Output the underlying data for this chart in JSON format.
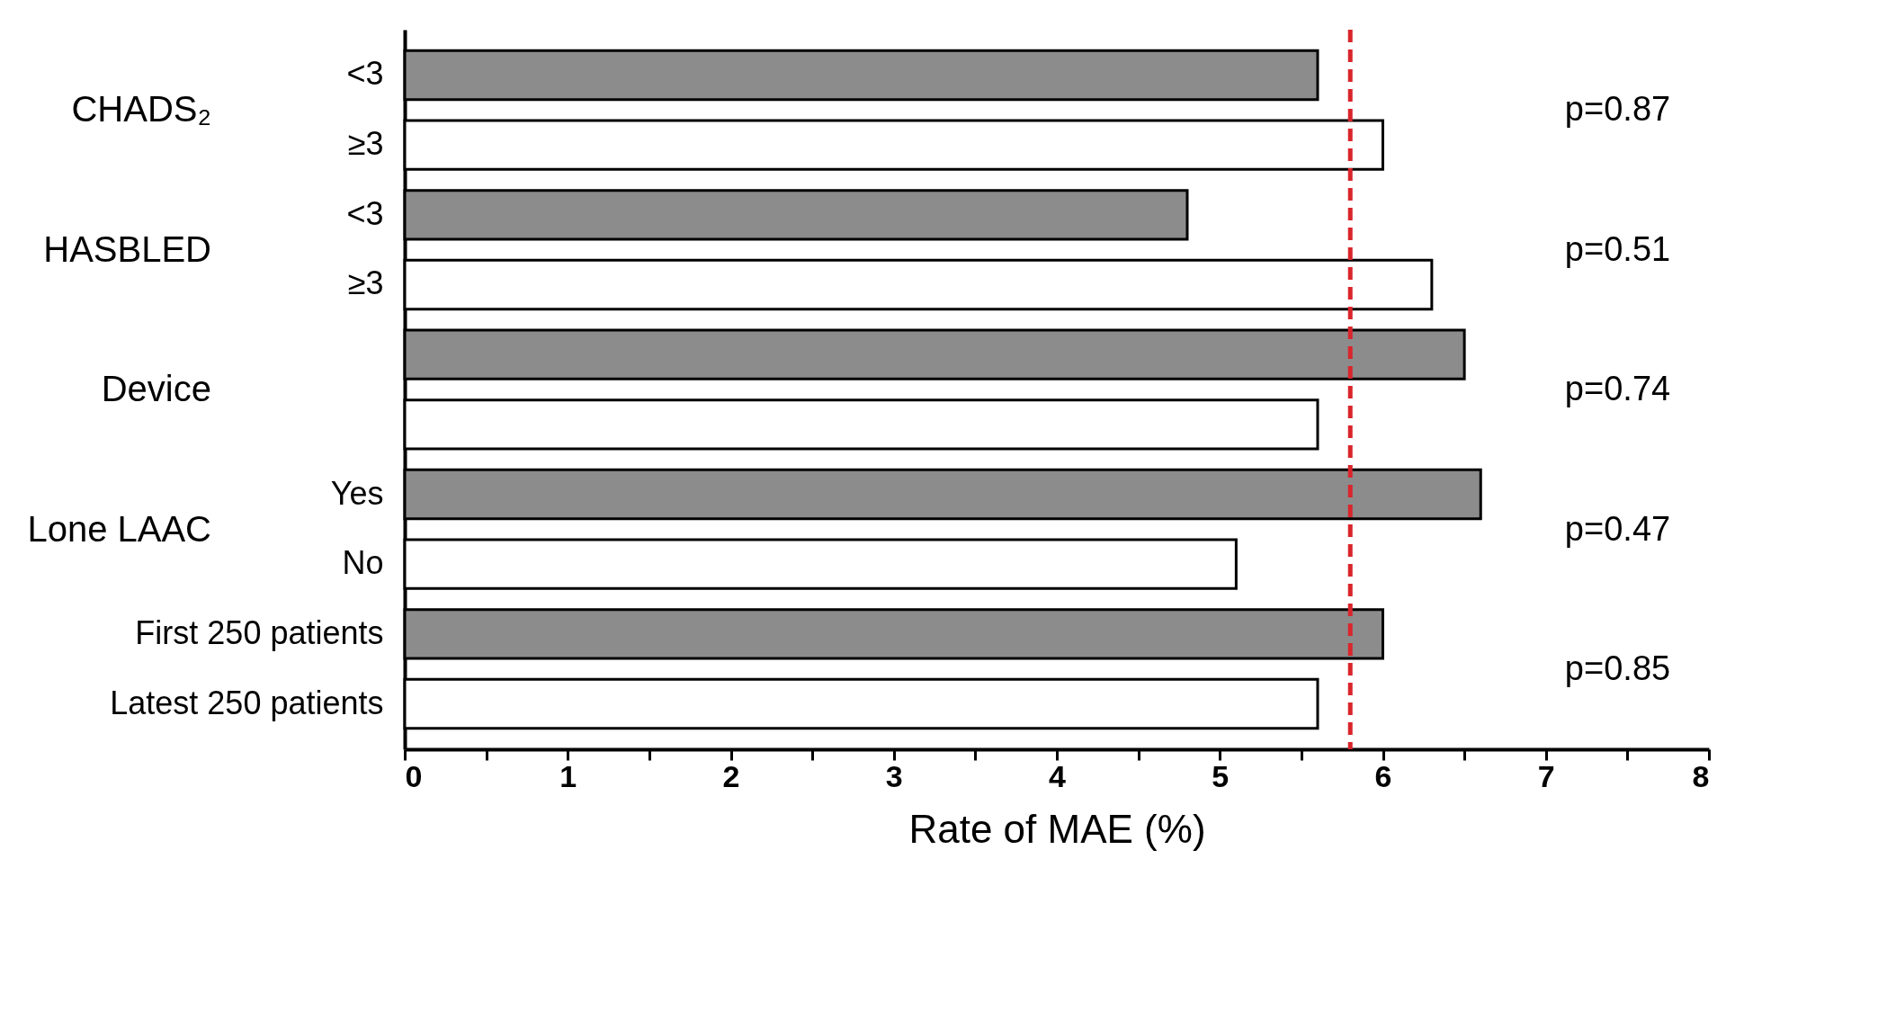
{
  "chart_data": {
    "type": "bar",
    "orientation": "horizontal",
    "xlabel": "Rate of MAE (%)",
    "categories": [
      "<3",
      "≥3",
      "<3",
      "≥3",
      null,
      null,
      "Yes",
      "No",
      "First 250 patients",
      "Latest 250 patients"
    ],
    "values": [
      5.6,
      6.0,
      4.8,
      6.3,
      6.5,
      5.6,
      6.6,
      5.1,
      6.0,
      5.6
    ],
    "colors": [
      "#8c8c8c",
      "#ffffff",
      "#8c8c8c",
      "#ffffff",
      "#8c8c8c",
      "#ffffff",
      "#8c8c8c",
      "#ffffff",
      "#8c8c8c",
      "#ffffff"
    ],
    "xlim": [
      0,
      8
    ],
    "xticks": [
      0,
      {
        "value": 0.5,
        "label": null
      },
      1,
      {
        "value": 1.5,
        "label": null
      },
      2,
      {
        "value": 2.5,
        "label": null
      },
      3,
      {
        "value": 3.5,
        "label": null
      },
      4,
      {
        "value": 4.5,
        "label": null
      },
      5,
      {
        "value": 5.5,
        "label": null
      },
      6,
      {
        "value": 6.5,
        "label": null
      },
      7,
      {
        "value": 7.5,
        "label": null
      },
      8
    ],
    "ref_lines": [
      {
        "axis": "x",
        "value": 5.8,
        "color": "#d9252b",
        "line_style": "dashed"
      }
    ],
    "annotations": [
      "CHADS₂",
      "HASBLED",
      "Device",
      "Lone LAAC",
      "p=0.87",
      "p=0.51",
      "p=0.74",
      "p=0.47",
      "p=0.85"
    ],
    "grid": false
  }
}
